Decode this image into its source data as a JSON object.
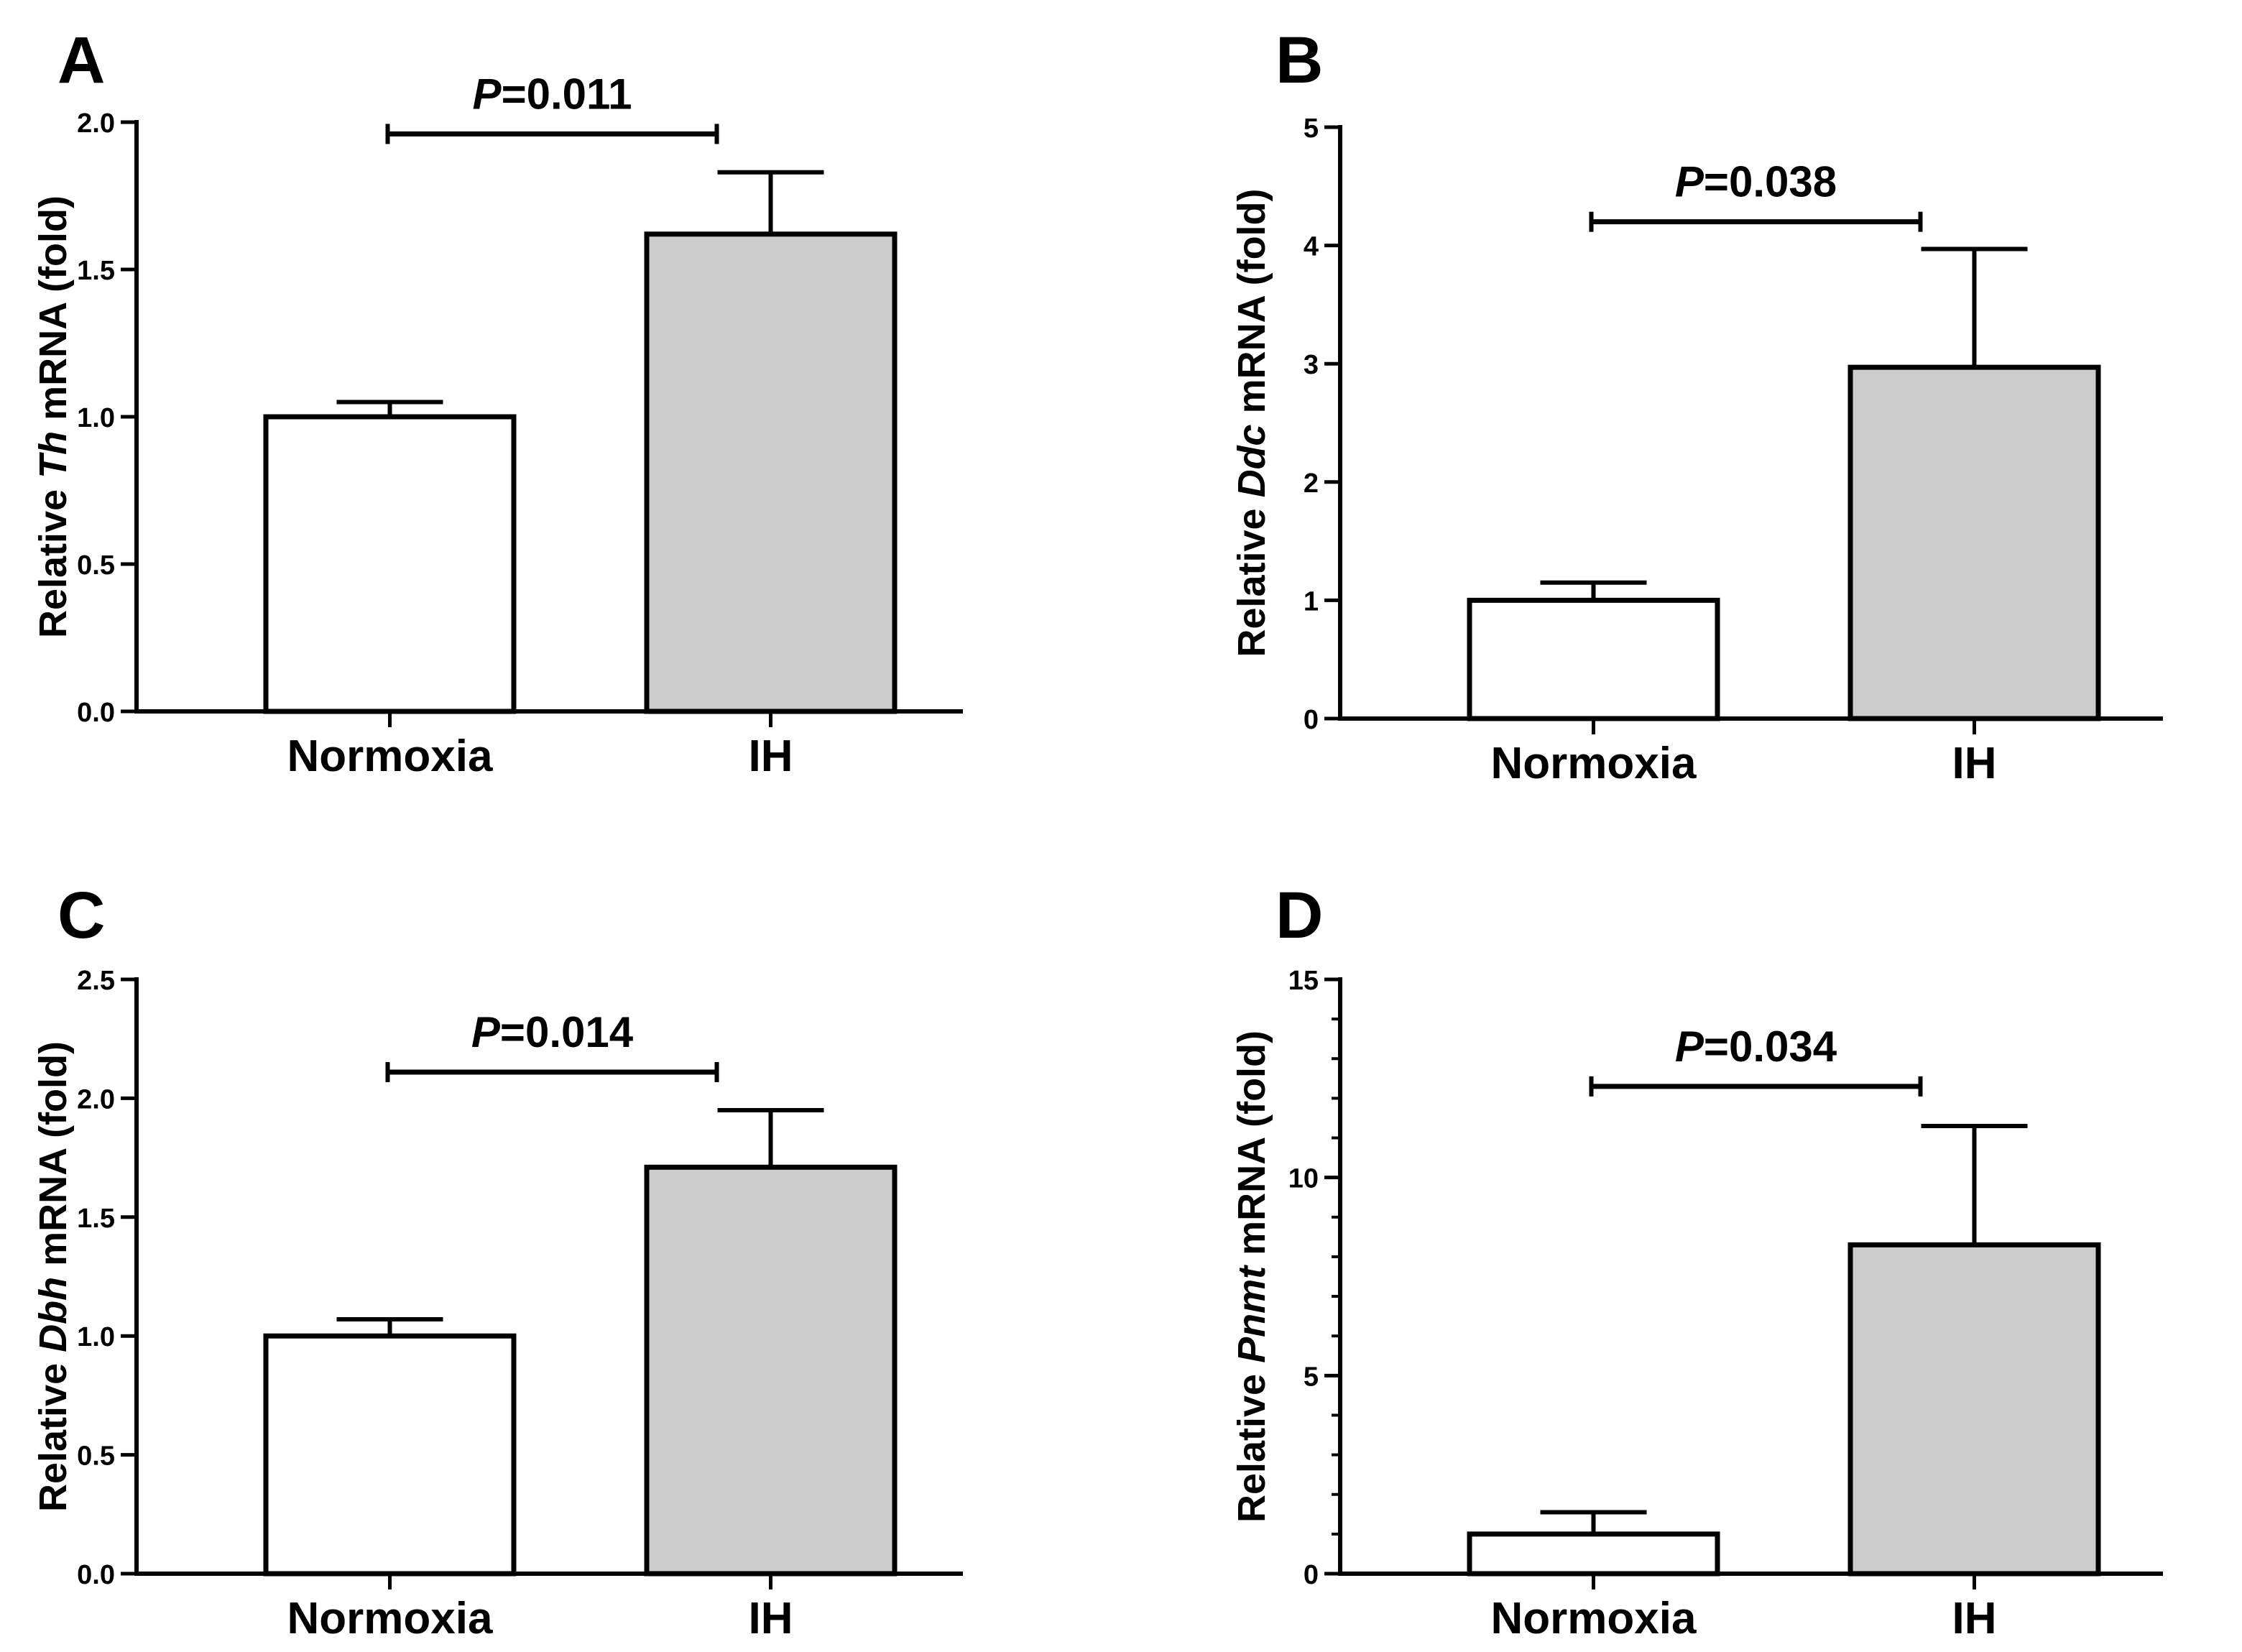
{
  "colors": {
    "axis": "#000000",
    "normoxia_fill": "#ffffff",
    "ih_fill": "#cccccc"
  },
  "chart_data": [
    {
      "panel": "A",
      "type": "bar",
      "categories": [
        "Normoxia",
        "IH"
      ],
      "values": [
        1.0,
        1.62
      ],
      "errors": [
        0.05,
        0.21
      ],
      "ylabel_prefix": "Relative ",
      "gene": "Th",
      "ylabel_suffix": " mRNA (fold)",
      "ylim": [
        0,
        2.0
      ],
      "yticks": [
        0.0,
        0.5,
        1.0,
        1.5,
        2.0
      ],
      "ytick_labels": [
        "0.0",
        "0.5",
        "1.0",
        "1.5",
        "2.0"
      ],
      "significance": {
        "p_symbol": "P",
        "p_text": "=0.011",
        "level": 1.96
      }
    },
    {
      "panel": "B",
      "type": "bar",
      "categories": [
        "Normoxia",
        "IH"
      ],
      "values": [
        1.0,
        2.97
      ],
      "errors": [
        0.15,
        1.0
      ],
      "ylabel_prefix": "Relative ",
      "gene": "Ddc",
      "ylabel_suffix": " mRNA (fold)",
      "ylim": [
        0,
        5
      ],
      "yticks": [
        0,
        1,
        2,
        3,
        4,
        5
      ],
      "ytick_labels": [
        "0",
        "1",
        "2",
        "3",
        "4",
        "5"
      ],
      "significance": {
        "p_symbol": "P",
        "p_text": "=0.038",
        "level": 4.2
      }
    },
    {
      "panel": "C",
      "type": "bar",
      "categories": [
        "Normoxia",
        "IH"
      ],
      "values": [
        1.0,
        1.71
      ],
      "errors": [
        0.07,
        0.24
      ],
      "ylabel_prefix": "Relative ",
      "gene": "Dbh",
      "ylabel_suffix": " mRNA (fold)",
      "ylim": [
        0,
        2.5
      ],
      "yticks": [
        0.0,
        0.5,
        1.0,
        1.5,
        2.0,
        2.5
      ],
      "ytick_labels": [
        "0.0",
        "0.5",
        "1.0",
        "1.5",
        "2.0",
        "2.5"
      ],
      "significance": {
        "p_symbol": "P",
        "p_text": "=0.014",
        "level": 2.11
      }
    },
    {
      "panel": "D",
      "type": "bar",
      "categories": [
        "Normoxia",
        "IH"
      ],
      "values": [
        1.0,
        8.3
      ],
      "errors": [
        0.55,
        3.0
      ],
      "ylabel_prefix": "Relative ",
      "gene": "Pnmt",
      "ylabel_suffix": " mRNA (fold)",
      "ylim": [
        0,
        15
      ],
      "yticks": [
        0,
        5,
        10,
        15
      ],
      "ytick_labels": [
        "0",
        "5",
        "10",
        "15"
      ],
      "minor_yticks": [
        1,
        2,
        3,
        4,
        6,
        7,
        8,
        9,
        11,
        12,
        13,
        14
      ],
      "significance": {
        "p_symbol": "P",
        "p_text": "=0.034",
        "level": 12.3
      }
    }
  ]
}
